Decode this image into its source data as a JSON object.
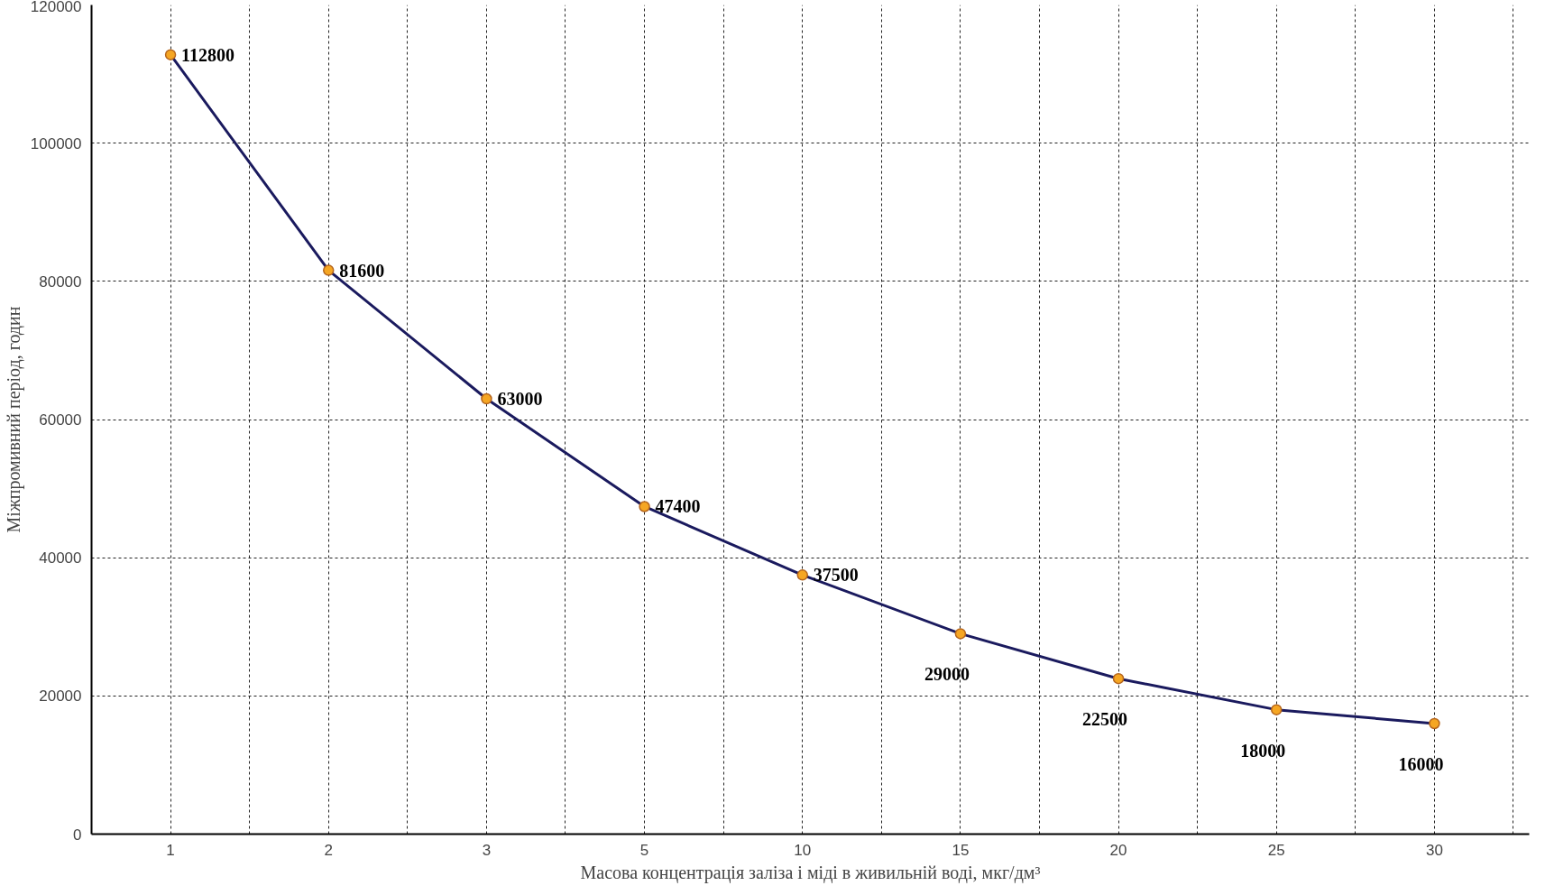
{
  "chart_data": {
    "type": "line",
    "xlabel": "Масова концентрація заліза і міді в живильній воді, мкг/дм³",
    "ylabel": "Міжпромивний період, годин",
    "categories": [
      "1",
      "2",
      "3",
      "5",
      "10",
      "15",
      "20",
      "25",
      "30"
    ],
    "series": [
      {
        "color": "#1a1a5e",
        "values": [
          112800,
          81600,
          63000,
          47400,
          37500,
          29000,
          22500,
          18000,
          16000
        ]
      }
    ],
    "ylim": [
      0,
      120000
    ],
    "yticks": [
      0,
      20000,
      40000,
      60000,
      80000,
      100000,
      120000
    ],
    "grid": true,
    "marker": "circle",
    "data_labels": true
  }
}
